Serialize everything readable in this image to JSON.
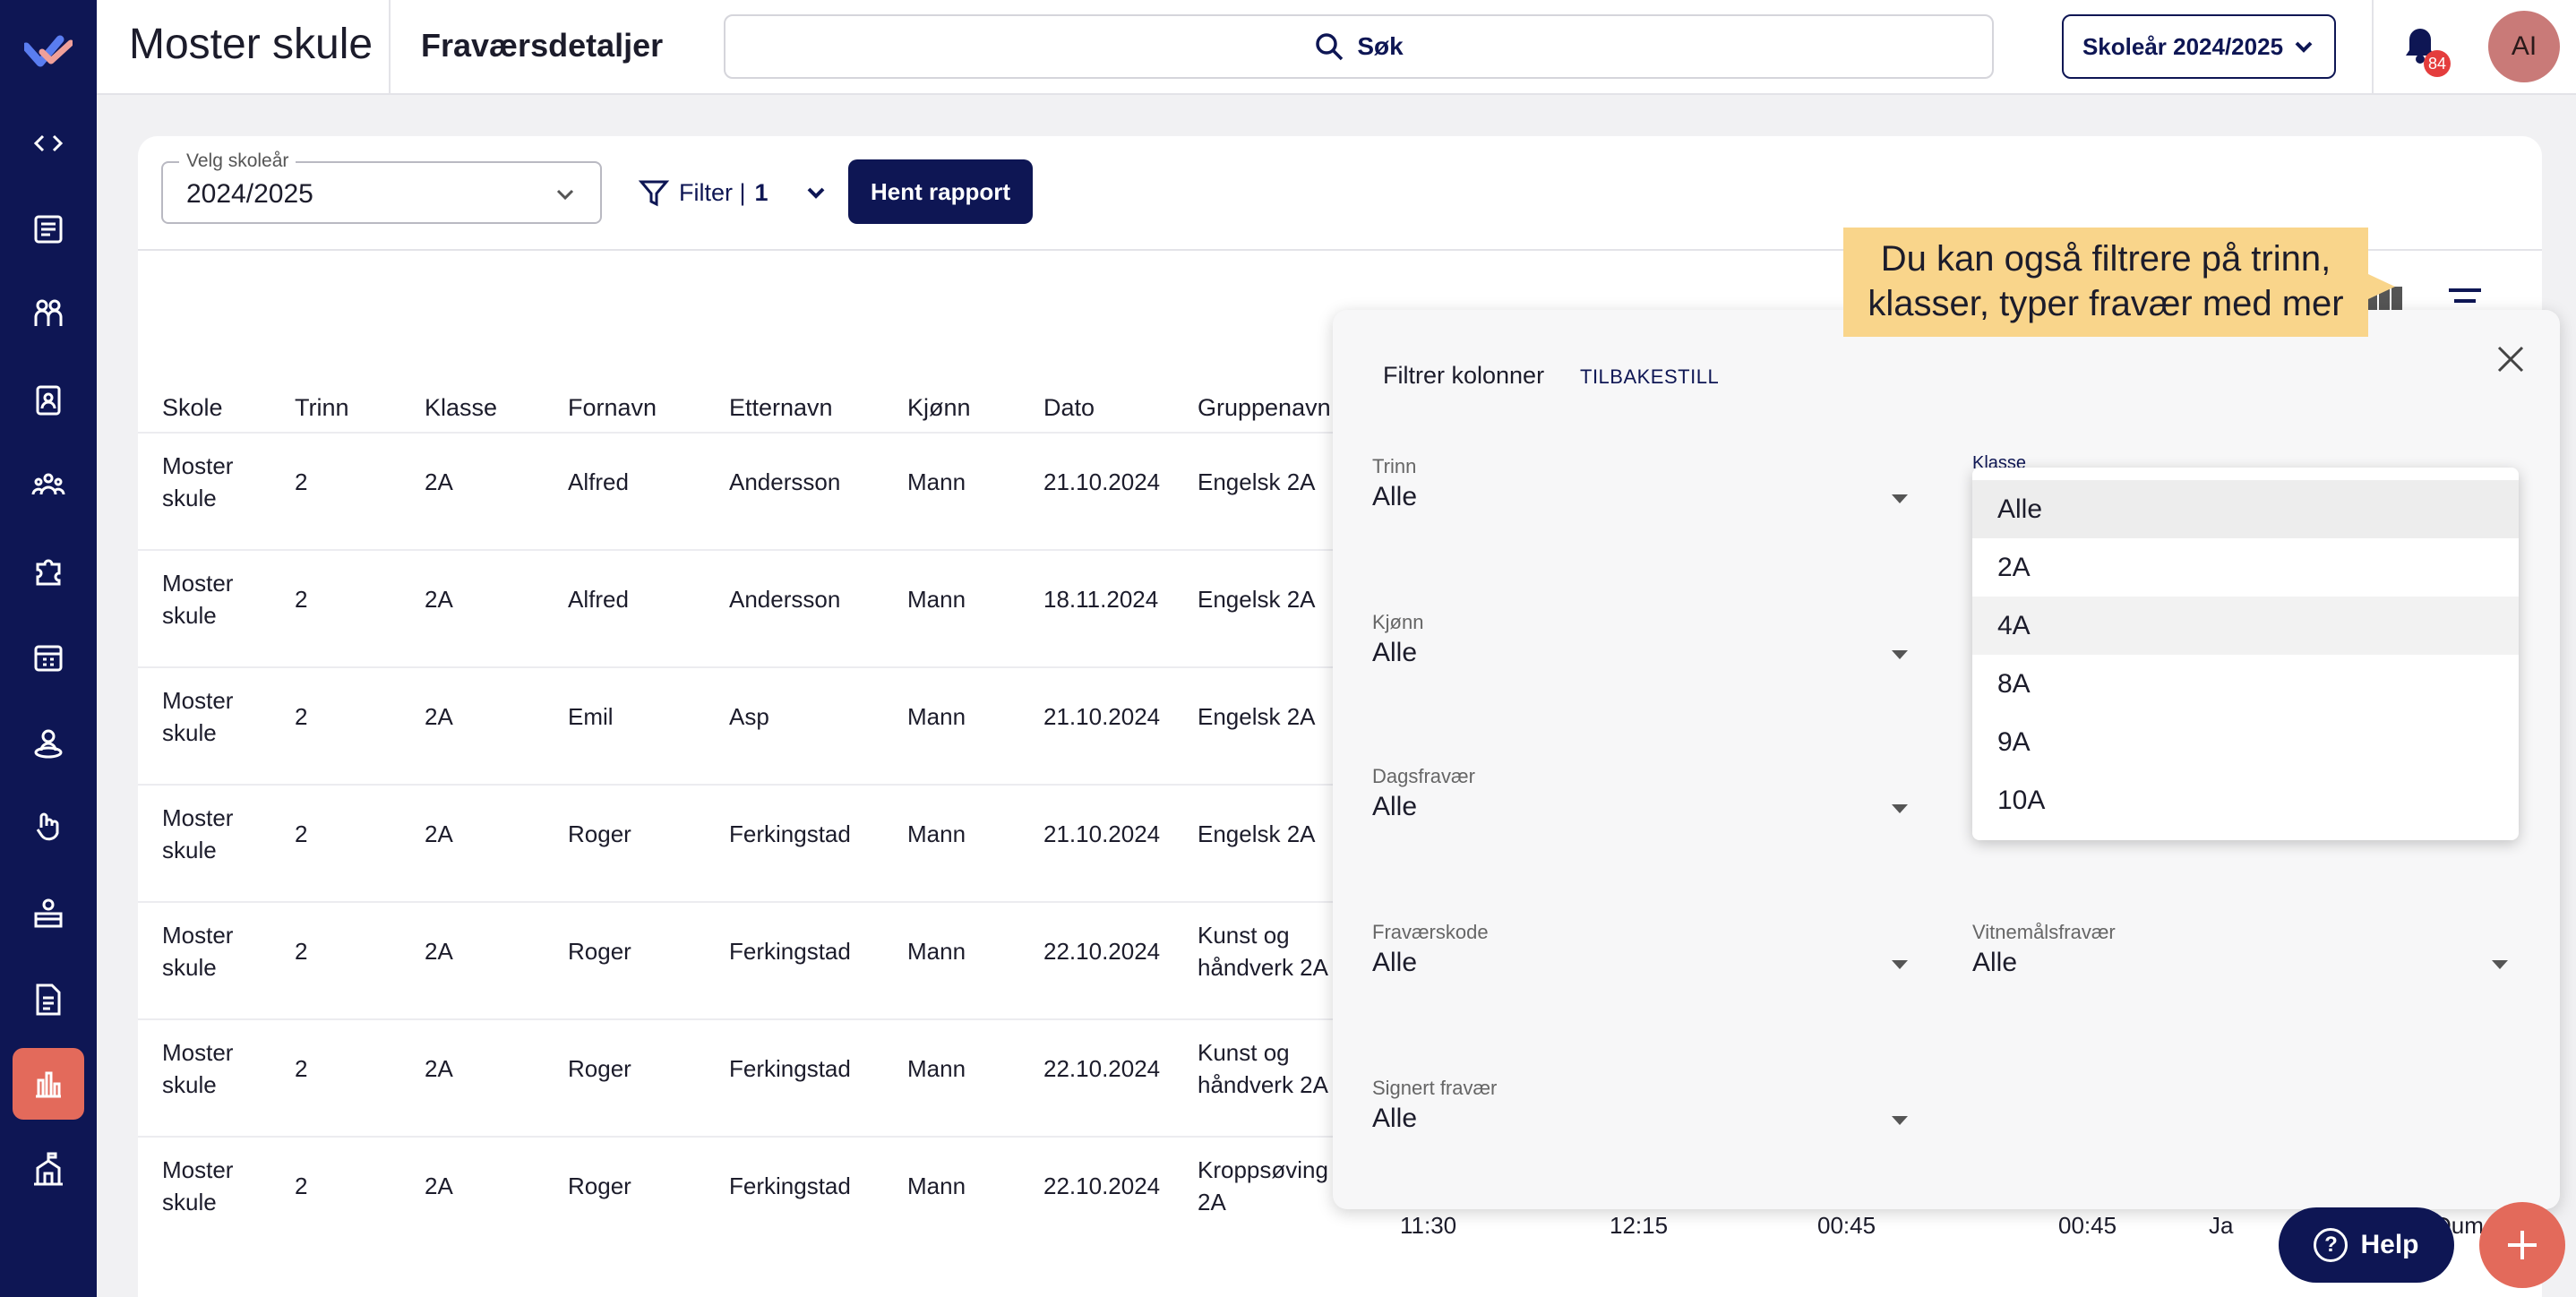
{
  "header": {
    "school_name": "Moster skule",
    "page_title": "Fraværsdetaljer",
    "search_label": "Søk",
    "year_button": "Skoleår 2024/2025",
    "notification_count": "84",
    "avatar_initials": "AI"
  },
  "sidebar": {
    "items": [
      {
        "icon": "code-icon"
      },
      {
        "icon": "newspaper-icon"
      },
      {
        "icon": "people-icon"
      },
      {
        "icon": "clipboard-icon"
      },
      {
        "icon": "groups-icon"
      },
      {
        "icon": "puzzle-icon"
      },
      {
        "icon": "calendar-grid-icon"
      },
      {
        "icon": "person-pin-icon"
      },
      {
        "icon": "hand-icon"
      },
      {
        "icon": "desk-icon"
      },
      {
        "icon": "document-icon"
      },
      {
        "icon": "bar-chart-icon",
        "active": true
      },
      {
        "icon": "school-icon"
      }
    ]
  },
  "toolbar": {
    "year_field_label": "Velg skoleår",
    "year_field_value": "2024/2025",
    "filter_label": "Filter |",
    "filter_count": "1",
    "report_button": "Hent rapport"
  },
  "tooltip": {
    "text": "Du kan også filtrere på trinn, klasser, typer fravær med mer"
  },
  "table": {
    "columns": [
      "Skole",
      "Trinn",
      "Klasse",
      "Fornavn",
      "Etternavn",
      "Kjønn",
      "Dato",
      "Gruppenavn"
    ],
    "rows": [
      [
        "Moster skule",
        "2",
        "2A",
        "Alfred",
        "Andersson",
        "Mann",
        "21.10.2024",
        "Engelsk 2A"
      ],
      [
        "Moster skule",
        "2",
        "2A",
        "Alfred",
        "Andersson",
        "Mann",
        "18.11.2024",
        "Engelsk 2A"
      ],
      [
        "Moster skule",
        "2",
        "2A",
        "Emil",
        "Asp",
        "Mann",
        "21.10.2024",
        "Engelsk 2A"
      ],
      [
        "Moster skule",
        "2",
        "2A",
        "Roger",
        "Ferkingstad",
        "Mann",
        "21.10.2024",
        "Engelsk 2A"
      ],
      [
        "Moster skule",
        "2",
        "2A",
        "Roger",
        "Ferkingstad",
        "Mann",
        "22.10.2024",
        "Kunst og håndverk 2A"
      ],
      [
        "Moster skule",
        "2",
        "2A",
        "Roger",
        "Ferkingstad",
        "Mann",
        "22.10.2024",
        "Kunst og håndverk 2A"
      ],
      [
        "Moster skule",
        "2",
        "2A",
        "Roger",
        "Ferkingstad",
        "Mann",
        "22.10.2024",
        "Kroppsøving 2A"
      ]
    ],
    "last_row_extra": [
      "11:30",
      "12:15",
      "00:45",
      "00:45",
      "Ja",
      "Dume"
    ]
  },
  "filter_panel": {
    "title": "Filtrer kolonner",
    "reset": "TILBAKESTILL",
    "fields": {
      "trinn": {
        "label": "Trinn",
        "value": "Alle"
      },
      "klasse": {
        "label": "Klasse",
        "value": "Alle"
      },
      "kjonn": {
        "label": "Kjønn",
        "value": "Alle"
      },
      "dagsfravaer": {
        "label": "Dagsfravær",
        "value": "Alle"
      },
      "fravaerskode": {
        "label": "Fraværskode",
        "value": "Alle"
      },
      "vitnemalsfravaer": {
        "label": "Vitnemålsfravær",
        "value": "Alle"
      },
      "signert": {
        "label": "Signert fravær",
        "value": "Alle"
      }
    },
    "klasse_options": [
      "Alle",
      "2A",
      "4A",
      "8A",
      "9A",
      "10A"
    ]
  },
  "help_button": "Help",
  "colors": {
    "navy": "#0e1654",
    "accent": "#e36a5b",
    "tooltip": "#f9d58b"
  }
}
